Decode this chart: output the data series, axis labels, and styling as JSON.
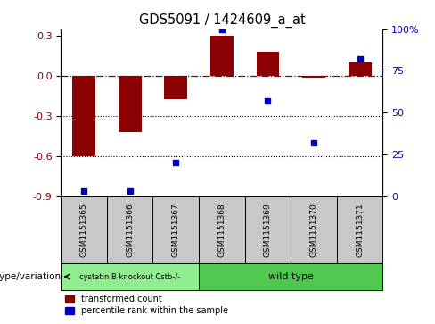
{
  "title": "GDS5091 / 1424609_a_at",
  "samples": [
    "GSM1151365",
    "GSM1151366",
    "GSM1151367",
    "GSM1151368",
    "GSM1151369",
    "GSM1151370",
    "GSM1151371"
  ],
  "red_values": [
    -0.6,
    -0.42,
    -0.17,
    0.3,
    0.18,
    -0.01,
    0.1
  ],
  "blue_percentiles": [
    3,
    3,
    20,
    100,
    57,
    32,
    82
  ],
  "ylim_left": [
    -0.9,
    0.35
  ],
  "ylim_right": [
    0,
    100
  ],
  "left_ticks": [
    0.3,
    0.0,
    -0.3,
    -0.6,
    -0.9
  ],
  "right_ticks": [
    100,
    75,
    50,
    25,
    0
  ],
  "right_tick_labels": [
    "100%",
    "75",
    "50",
    "25",
    "0"
  ],
  "dotted_lines": [
    -0.3,
    -0.6
  ],
  "red_color": "#8B0000",
  "blue_color": "#0000CD",
  "bar_width": 0.5,
  "group1_indices": [
    0,
    1,
    2
  ],
  "group2_indices": [
    3,
    4,
    5,
    6
  ],
  "group1_label": "cystatin B knockout Cstb-/-",
  "group2_label": "wild type",
  "group1_color": "#90EE90",
  "group2_color": "#50C850",
  "legend_red": "transformed count",
  "legend_blue": "percentile rank within the sample",
  "sample_box_color": "#C8C8C8",
  "figsize": [
    4.88,
    3.63
  ],
  "dpi": 100
}
